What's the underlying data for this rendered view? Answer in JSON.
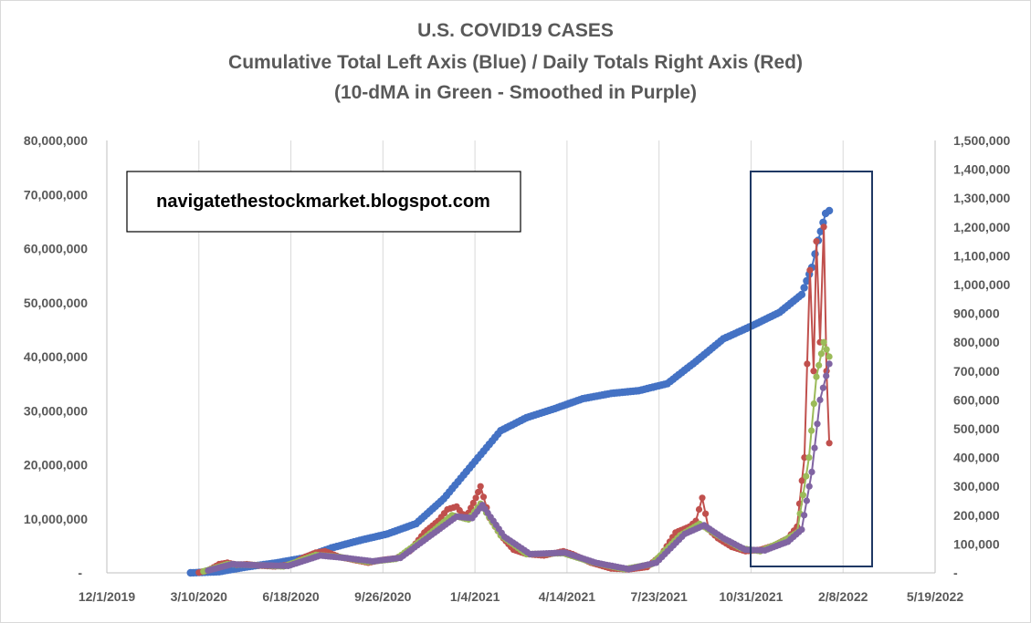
{
  "chart_data": {
    "type": "line",
    "title": "U.S. COVID19 CASES",
    "subtitle": "Cumulative Total Left Axis (Blue) / Daily Totals Right Axis (Red)",
    "subtitle2": "(10-dMA in Green - Smoothed in Purple)",
    "annotation": "navigatethestockmarket.blogspot.com",
    "x_ticks": [
      "12/1/2019",
      "3/10/2020",
      "6/18/2020",
      "9/26/2020",
      "1/4/2021",
      "4/14/2021",
      "7/23/2021",
      "10/31/2021",
      "2/8/2022",
      "5/19/2022"
    ],
    "xlim": [
      "2019-12-01",
      "2022-05-19"
    ],
    "y_left_ticks": [
      "-",
      "10,000,000",
      "20,000,000",
      "30,000,000",
      "40,000,000",
      "50,000,000",
      "60,000,000",
      "70,000,000",
      "80,000,000"
    ],
    "y_left_lim": [
      0,
      80000000
    ],
    "y_right_ticks": [
      "-",
      "100,000",
      "200,000",
      "300,000",
      "400,000",
      "500,000",
      "600,000",
      "700,000",
      "800,000",
      "900,000",
      "1,000,000",
      "1,100,000",
      "1,200,000",
      "1,300,000",
      "1,400,000",
      "1,500,000"
    ],
    "y_right_lim": [
      0,
      1500000
    ],
    "grid": "vertical",
    "series": [
      {
        "axis": "left",
        "color": "#4472C4",
        "points": [
          [
            "2020-03-01",
            0
          ],
          [
            "2020-04-01",
            200000
          ],
          [
            "2020-05-01",
            1100000
          ],
          [
            "2020-06-01",
            1800000
          ],
          [
            "2020-07-01",
            2700000
          ],
          [
            "2020-08-01",
            4600000
          ],
          [
            "2020-09-01",
            6000000
          ],
          [
            "2020-10-01",
            7200000
          ],
          [
            "2020-11-01",
            9100000
          ],
          [
            "2020-12-01",
            13700000
          ],
          [
            "2021-01-01",
            20000000
          ],
          [
            "2021-02-01",
            26300000
          ],
          [
            "2021-03-01",
            28700000
          ],
          [
            "2021-04-01",
            30400000
          ],
          [
            "2021-05-01",
            32200000
          ],
          [
            "2021-06-01",
            33200000
          ],
          [
            "2021-07-01",
            33700000
          ],
          [
            "2021-08-01",
            35000000
          ],
          [
            "2021-09-01",
            39100000
          ],
          [
            "2021-10-01",
            43300000
          ],
          [
            "2021-11-01",
            45700000
          ],
          [
            "2021-12-01",
            48200000
          ],
          [
            "2021-12-25",
            51500000
          ],
          [
            "2022-01-05",
            56500000
          ],
          [
            "2022-01-12",
            61500000
          ],
          [
            "2022-01-20",
            66500000
          ],
          [
            "2022-01-24",
            67000000
          ]
        ]
      },
      {
        "axis": "right",
        "color": "#C0504D",
        "points": [
          [
            "2020-03-10",
            1000
          ],
          [
            "2020-03-20",
            8000
          ],
          [
            "2020-04-01",
            30000
          ],
          [
            "2020-04-10",
            35000
          ],
          [
            "2020-04-20",
            28000
          ],
          [
            "2020-05-01",
            30000
          ],
          [
            "2020-05-15",
            25000
          ],
          [
            "2020-06-01",
            22000
          ],
          [
            "2020-06-20",
            30000
          ],
          [
            "2020-07-01",
            52000
          ],
          [
            "2020-07-15",
            70000
          ],
          [
            "2020-07-25",
            75000
          ],
          [
            "2020-08-10",
            55000
          ],
          [
            "2020-08-25",
            45000
          ],
          [
            "2020-09-10",
            35000
          ],
          [
            "2020-09-26",
            45000
          ],
          [
            "2020-10-10",
            50000
          ],
          [
            "2020-10-25",
            75000
          ],
          [
            "2020-11-10",
            140000
          ],
          [
            "2020-11-25",
            180000
          ],
          [
            "2020-12-05",
            220000
          ],
          [
            "2020-12-15",
            230000
          ],
          [
            "2020-12-25",
            190000
          ],
          [
            "2021-01-05",
            260000
          ],
          [
            "2021-01-10",
            300000
          ],
          [
            "2021-01-20",
            190000
          ],
          [
            "2021-02-01",
            130000
          ],
          [
            "2021-02-15",
            80000
          ],
          [
            "2021-03-01",
            65000
          ],
          [
            "2021-03-20",
            60000
          ],
          [
            "2021-04-10",
            75000
          ],
          [
            "2021-04-20",
            65000
          ],
          [
            "2021-05-10",
            35000
          ],
          [
            "2021-06-01",
            15000
          ],
          [
            "2021-06-20",
            12000
          ],
          [
            "2021-07-10",
            20000
          ],
          [
            "2021-07-25",
            60000
          ],
          [
            "2021-08-10",
            140000
          ],
          [
            "2021-08-25",
            160000
          ],
          [
            "2021-09-01",
            180000
          ],
          [
            "2021-09-08",
            260000
          ],
          [
            "2021-09-15",
            150000
          ],
          [
            "2021-09-25",
            120000
          ],
          [
            "2021-10-10",
            90000
          ],
          [
            "2021-10-25",
            75000
          ],
          [
            "2021-11-10",
            80000
          ],
          [
            "2021-11-25",
            95000
          ],
          [
            "2021-12-10",
            120000
          ],
          [
            "2021-12-20",
            160000
          ],
          [
            "2021-12-28",
            400000
          ],
          [
            "2022-01-03",
            1050000
          ],
          [
            "2022-01-07",
            700000
          ],
          [
            "2022-01-10",
            1150000
          ],
          [
            "2022-01-14",
            800000
          ],
          [
            "2022-01-18",
            1200000
          ],
          [
            "2022-01-21",
            700000
          ],
          [
            "2022-01-24",
            450000
          ]
        ]
      },
      {
        "axis": "right",
        "color": "#9BBB59",
        "points": [
          [
            "2020-03-15",
            5000
          ],
          [
            "2020-04-10",
            30000
          ],
          [
            "2020-05-10",
            27000
          ],
          [
            "2020-06-10",
            22000
          ],
          [
            "2020-07-15",
            62000
          ],
          [
            "2020-08-10",
            55000
          ],
          [
            "2020-09-10",
            38000
          ],
          [
            "2020-10-10",
            48000
          ],
          [
            "2020-11-10",
            120000
          ],
          [
            "2020-12-10",
            200000
          ],
          [
            "2020-12-28",
            185000
          ],
          [
            "2021-01-10",
            240000
          ],
          [
            "2021-02-01",
            130000
          ],
          [
            "2021-03-01",
            65000
          ],
          [
            "2021-04-10",
            68000
          ],
          [
            "2021-05-10",
            38000
          ],
          [
            "2021-06-15",
            13000
          ],
          [
            "2021-07-15",
            30000
          ],
          [
            "2021-08-15",
            130000
          ],
          [
            "2021-09-05",
            170000
          ],
          [
            "2021-09-25",
            130000
          ],
          [
            "2021-10-20",
            85000
          ],
          [
            "2021-11-10",
            75000
          ],
          [
            "2021-12-05",
            110000
          ],
          [
            "2021-12-20",
            140000
          ],
          [
            "2022-01-02",
            400000
          ],
          [
            "2022-01-10",
            680000
          ],
          [
            "2022-01-18",
            800000
          ],
          [
            "2022-01-24",
            750000
          ]
        ]
      },
      {
        "axis": "right",
        "color": "#8064A2",
        "points": [
          [
            "2020-03-20",
            8000
          ],
          [
            "2020-04-15",
            30000
          ],
          [
            "2020-05-15",
            26000
          ],
          [
            "2020-06-15",
            24000
          ],
          [
            "2020-07-20",
            60000
          ],
          [
            "2020-08-15",
            52000
          ],
          [
            "2020-09-15",
            40000
          ],
          [
            "2020-10-15",
            52000
          ],
          [
            "2020-11-15",
            125000
          ],
          [
            "2020-12-15",
            195000
          ],
          [
            "2021-01-01",
            190000
          ],
          [
            "2021-01-12",
            235000
          ],
          [
            "2021-02-05",
            125000
          ],
          [
            "2021-03-05",
            65000
          ],
          [
            "2021-04-12",
            70000
          ],
          [
            "2021-05-15",
            35000
          ],
          [
            "2021-06-20",
            13000
          ],
          [
            "2021-07-20",
            35000
          ],
          [
            "2021-08-20",
            135000
          ],
          [
            "2021-09-10",
            165000
          ],
          [
            "2021-10-01",
            120000
          ],
          [
            "2021-10-25",
            80000
          ],
          [
            "2021-11-15",
            78000
          ],
          [
            "2021-12-10",
            108000
          ],
          [
            "2021-12-25",
            150000
          ],
          [
            "2022-01-05",
            350000
          ],
          [
            "2022-01-14",
            600000
          ],
          [
            "2022-01-24",
            725000
          ]
        ]
      }
    ]
  }
}
